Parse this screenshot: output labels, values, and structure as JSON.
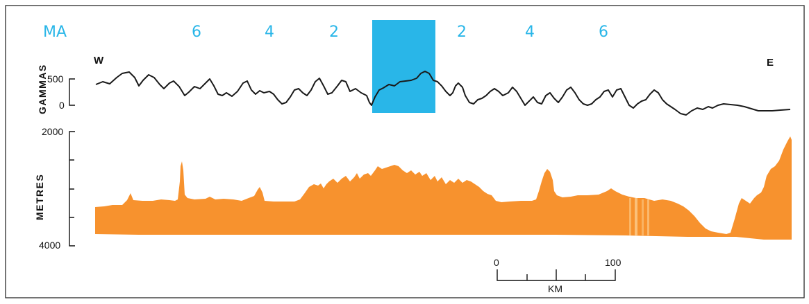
{
  "header": {
    "ma_label": "MA",
    "west_label": "W",
    "east_label": "E",
    "ma_ticks_left": [
      "6",
      "4",
      "2"
    ],
    "ma_ticks_right": [
      "2",
      "4",
      "6"
    ]
  },
  "magnetic_axis": {
    "title": "GAMMAS",
    "ticks": [
      "500",
      "0"
    ]
  },
  "depth_axis": {
    "title": "METRES",
    "ticks": [
      "2000",
      "4000"
    ]
  },
  "scale_bar": {
    "start_label": "0",
    "end_label": "100",
    "unit_label": "KM"
  },
  "colors": {
    "anomaly_band": "#29b6e8",
    "bathymetry_fill": "#f7922e",
    "labels_accent": "#29b6e8"
  }
}
